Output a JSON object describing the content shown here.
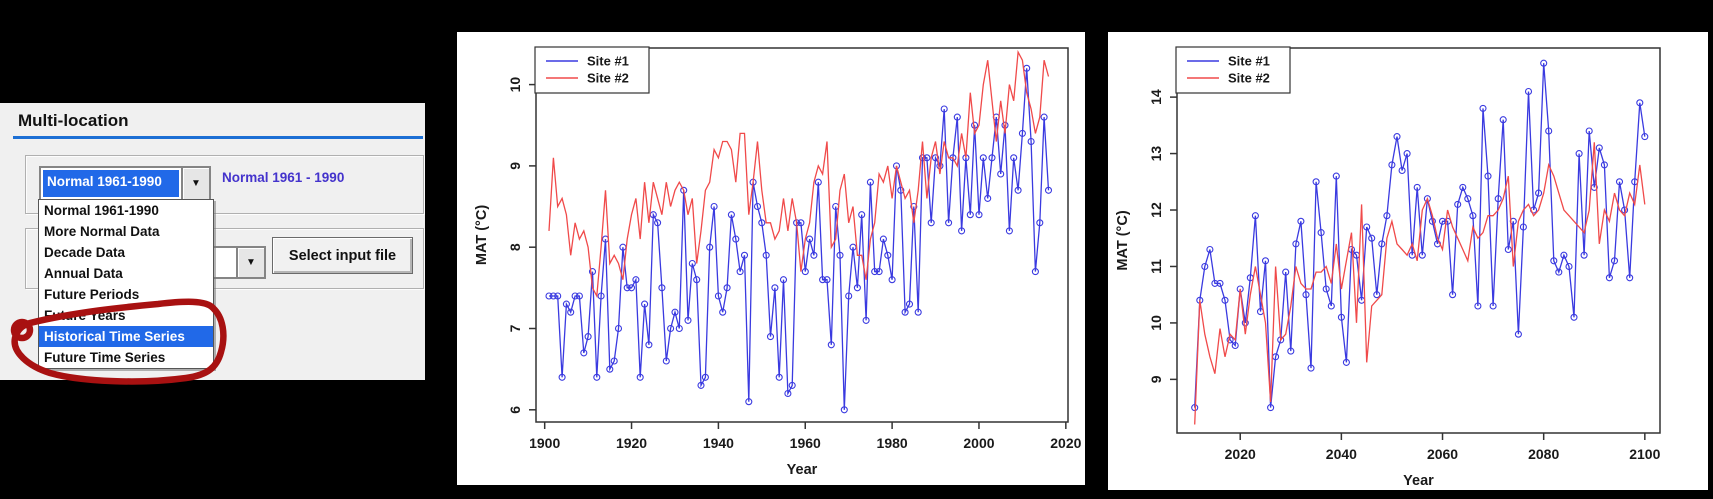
{
  "left_panel": {
    "title": "Multi-location",
    "combo1": {
      "value": "Normal 1961-1990"
    },
    "combo1_side_label": "Normal 1961 - 1990",
    "dropdown": {
      "items": [
        "Normal 1961-1990",
        "More Normal Data",
        "Decade Data",
        "Annual Data",
        "Future Periods",
        "Future Years",
        "Historical Time Series",
        "Future Time Series"
      ],
      "selected": "Historical Time Series"
    },
    "combo2": {
      "value": ""
    },
    "select_input_file_button": "Select input file",
    "colors": {
      "panel_bg": "#f0f0f0",
      "highlight_blue": "#2169e8",
      "rule_blue": "#1c6fd4",
      "side_label_blue": "#4433cc",
      "annotation_red": "#a81111"
    }
  },
  "chart_data": [
    {
      "id": "historical-time-series",
      "type": "line",
      "xlabel": "Year",
      "ylabel": "MAT (°C)",
      "xlim": [
        1898,
        2020.5
      ],
      "ylim": [
        5.85,
        10.45
      ],
      "xticks": [
        1900,
        1920,
        1940,
        1960,
        1980,
        2000,
        2020
      ],
      "yticks": [
        6,
        7,
        8,
        9,
        10
      ],
      "grid": false,
      "legend_position": "top-left",
      "x_start": 1901,
      "x_step": 1,
      "series": [
        {
          "name": "Site #1",
          "color": "#3a3ae0",
          "marker": "circle",
          "values": [
            7.4,
            7.4,
            7.4,
            6.4,
            7.3,
            7.2,
            7.4,
            7.4,
            6.7,
            6.9,
            7.7,
            6.4,
            7.4,
            8.1,
            6.5,
            6.6,
            7.0,
            8.0,
            7.5,
            7.5,
            7.6,
            6.4,
            7.3,
            6.8,
            8.4,
            8.3,
            7.5,
            6.6,
            7.0,
            7.2,
            7.0,
            8.7,
            7.1,
            7.8,
            7.6,
            6.3,
            6.4,
            8.0,
            8.5,
            7.4,
            7.2,
            7.5,
            8.4,
            8.1,
            7.7,
            7.9,
            6.1,
            8.8,
            8.5,
            8.3,
            7.9,
            6.9,
            7.5,
            6.4,
            7.6,
            6.2,
            6.3,
            8.3,
            8.3,
            7.7,
            8.1,
            7.9,
            8.8,
            7.6,
            7.6,
            6.8,
            8.5,
            7.9,
            6.0,
            7.4,
            8.0,
            7.5,
            8.4,
            7.1,
            8.8,
            7.7,
            7.7,
            8.1,
            7.9,
            7.6,
            9.0,
            8.7,
            7.2,
            7.3,
            8.5,
            7.2,
            9.1,
            9.1,
            8.3,
            9.1,
            9.0,
            9.7,
            8.3,
            9.1,
            9.6,
            8.2,
            9.1,
            8.4,
            9.5,
            8.4,
            9.1,
            8.6,
            9.1,
            9.6,
            8.9,
            9.5,
            8.2,
            9.1,
            8.7,
            9.4,
            10.2,
            9.3,
            7.7,
            8.3,
            9.6,
            8.7
          ]
        },
        {
          "name": "Site #2",
          "color": "#f04a4a",
          "marker": "none",
          "values": [
            8.2,
            9.1,
            8.5,
            8.6,
            8.4,
            7.9,
            8.3,
            8.1,
            8.2,
            8.0,
            7.5,
            7.4,
            8.0,
            8.7,
            7.8,
            7.9,
            7.8,
            7.6,
            8.1,
            8.4,
            8.6,
            8.1,
            8.8,
            8.3,
            8.8,
            8.6,
            8.4,
            8.8,
            8.5,
            8.7,
            8.8,
            8.7,
            8.4,
            8.6,
            7.8,
            8.2,
            8.7,
            8.8,
            9.2,
            9.1,
            9.3,
            9.3,
            9.2,
            8.8,
            9.4,
            9.4,
            8.4,
            8.8,
            9.3,
            8.7,
            8.3,
            8.3,
            8.1,
            8.2,
            8.6,
            8.2,
            8.6,
            8.3,
            7.7,
            8.1,
            8.3,
            8.8,
            9.0,
            8.9,
            9.3,
            8.0,
            8.1,
            8.7,
            8.9,
            8.3,
            8.5,
            7.9,
            7.9,
            7.6,
            8.1,
            8.3,
            8.9,
            8.8,
            9.0,
            8.6,
            9.0,
            8.8,
            8.6,
            8.7,
            8.3,
            8.7,
            9.3,
            8.6,
            9.1,
            9.3,
            8.9,
            9.3,
            9.1,
            9.1,
            9.0,
            9.4,
            9.1,
            9.9,
            9.4,
            9.5,
            10.0,
            10.3,
            9.8,
            9.3,
            9.8,
            9.4,
            10.0,
            9.8,
            10.4,
            10.3,
            9.9,
            9.7,
            9.4,
            9.6,
            10.3,
            10.1
          ]
        }
      ]
    },
    {
      "id": "future-time-series",
      "type": "line",
      "xlabel": "Year",
      "ylabel": "MAT (°C)",
      "xlim": [
        2007.5,
        2103
      ],
      "ylim": [
        8.05,
        14.87
      ],
      "xticks": [
        2020,
        2040,
        2060,
        2080,
        2100
      ],
      "yticks": [
        9,
        10,
        11,
        12,
        13,
        14
      ],
      "grid": false,
      "legend_position": "top-left",
      "x_start": 2011,
      "x_step": 1,
      "series": [
        {
          "name": "Site #1",
          "color": "#3a3ae0",
          "marker": "circle",
          "values": [
            8.5,
            10.4,
            11.0,
            11.3,
            10.7,
            10.7,
            10.4,
            9.7,
            9.6,
            10.6,
            10.0,
            10.8,
            11.9,
            10.2,
            11.1,
            8.5,
            9.4,
            9.7,
            10.9,
            9.5,
            11.4,
            11.8,
            10.5,
            9.2,
            12.5,
            11.6,
            10.6,
            10.3,
            12.6,
            10.1,
            9.3,
            11.3,
            11.2,
            10.4,
            11.7,
            11.5,
            10.5,
            11.4,
            11.9,
            12.8,
            13.3,
            12.7,
            13.0,
            11.2,
            12.4,
            11.2,
            12.2,
            11.8,
            11.4,
            11.8,
            11.8,
            10.5,
            12.1,
            12.4,
            12.2,
            11.9,
            10.3,
            13.8,
            12.6,
            10.3,
            12.2,
            13.6,
            11.3,
            11.8,
            9.8,
            11.7,
            14.1,
            12.0,
            12.3,
            14.6,
            13.4,
            11.1,
            10.9,
            11.2,
            11.0,
            10.1,
            13.0,
            11.2,
            13.4,
            12.4,
            13.1,
            12.8,
            10.8,
            11.1,
            12.5,
            12.0,
            10.8,
            12.5,
            13.9,
            13.3
          ]
        },
        {
          "name": "Site #2",
          "color": "#f04a4a",
          "marker": "none",
          "values": [
            8.2,
            10.4,
            9.8,
            9.4,
            9.1,
            9.9,
            9.4,
            9.8,
            9.7,
            10.6,
            9.8,
            10.5,
            11.0,
            10.5,
            10.0,
            8.6,
            11.0,
            9.7,
            9.8,
            10.3,
            11.0,
            10.7,
            10.6,
            10.6,
            10.9,
            10.9,
            11.0,
            10.7,
            11.4,
            10.6,
            11.1,
            11.6,
            10.0,
            12.1,
            9.3,
            10.3,
            10.4,
            10.5,
            11.5,
            11.8,
            11.4,
            11.3,
            11.2,
            11.4,
            11.1,
            12.0,
            12.2,
            11.9,
            11.5,
            11.3,
            12.0,
            11.7,
            11.5,
            11.3,
            11.1,
            11.7,
            11.5,
            11.6,
            11.9,
            11.9,
            12.0,
            12.2,
            12.6,
            11.0,
            11.8,
            12.0,
            12.1,
            11.9,
            12.0,
            12.3,
            12.8,
            12.6,
            12.3,
            12.0,
            11.9,
            11.8,
            11.7,
            11.6,
            12.0,
            13.2,
            11.4,
            12.0,
            11.8,
            12.3,
            12.0,
            11.9,
            12.3,
            12.1,
            12.8,
            12.1
          ]
        }
      ]
    }
  ]
}
